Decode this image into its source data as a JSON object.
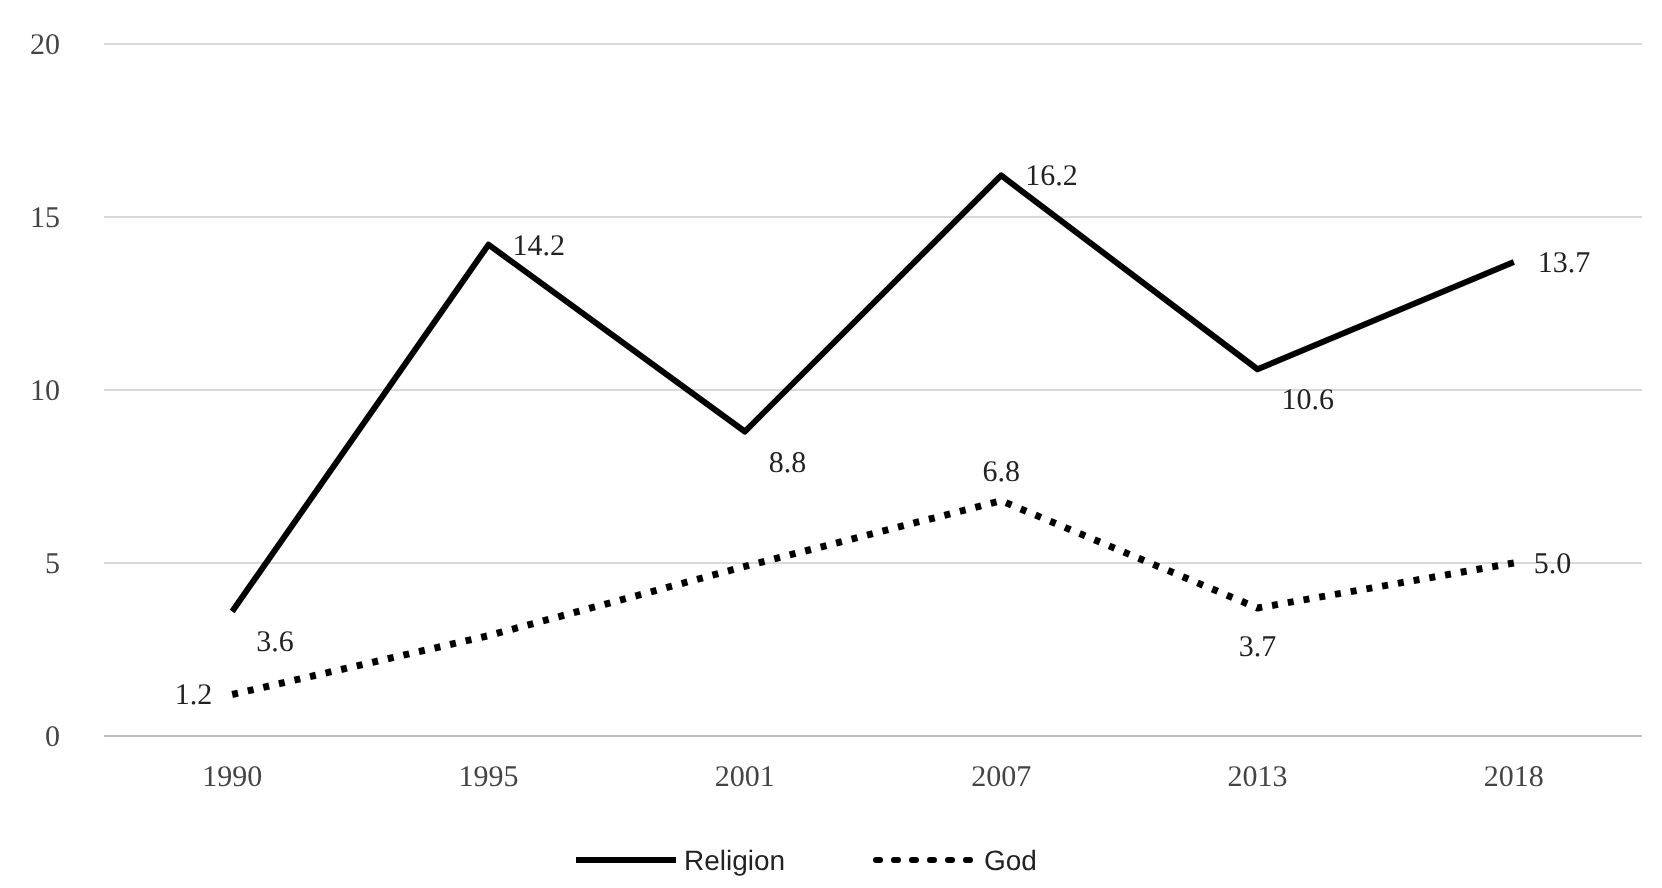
{
  "chart_data": {
    "type": "line",
    "categories": [
      "1990",
      "1995",
      "2001",
      "2007",
      "2013",
      "2018"
    ],
    "series": [
      {
        "name": "Religion",
        "color": "#000000",
        "line_style": "solid",
        "values": [
          3.6,
          14.2,
          8.8,
          16.2,
          10.6,
          13.7
        ],
        "value_labels": [
          "3.6",
          "14.2",
          "8.8",
          "16.2",
          "10.6",
          "13.7"
        ]
      },
      {
        "name": "God",
        "color": "#000000",
        "line_style": "dotted",
        "values": [
          1.2,
          2.9,
          4.9,
          6.8,
          3.7,
          5.0
        ],
        "value_labels": [
          "1.2",
          null,
          null,
          "6.8",
          "3.7",
          "5.0"
        ]
      }
    ],
    "ylim": [
      0,
      20
    ],
    "yticks": [
      0,
      5,
      10,
      15,
      20
    ],
    "grid": "y",
    "legend": "bottom",
    "marker": "none"
  }
}
